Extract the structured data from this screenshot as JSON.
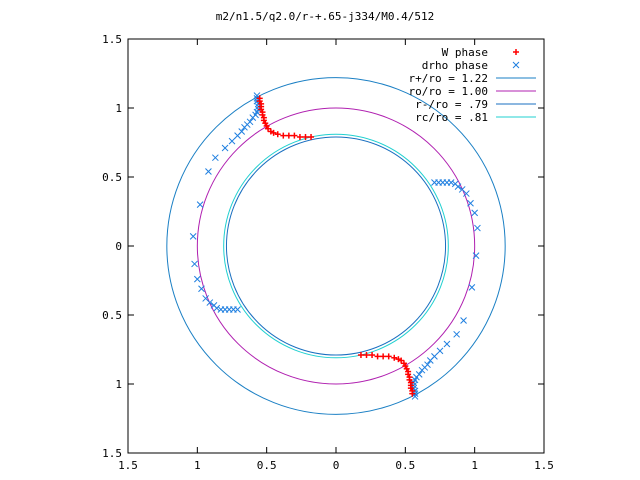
{
  "chart_data": {
    "type": "scatter",
    "title": "m2/n1.5/q2.0/r-+.65-j334/M0.4/512",
    "xlim": [
      -1.5,
      1.5
    ],
    "ylim": [
      -1.5,
      1.5
    ],
    "x_ticks": [
      {
        "v": -1.5,
        "label": "1.5"
      },
      {
        "v": -1,
        "label": "1"
      },
      {
        "v": -0.5,
        "label": "0.5"
      },
      {
        "v": 0,
        "label": "0"
      },
      {
        "v": 0.5,
        "label": "0.5"
      },
      {
        "v": 1,
        "label": "1"
      },
      {
        "v": 1.5,
        "label": "1.5"
      }
    ],
    "y_ticks": [
      {
        "v": 1.5,
        "label": "1.5"
      },
      {
        "v": 1,
        "label": "1"
      },
      {
        "v": 0.5,
        "label": "0.5"
      },
      {
        "v": 0,
        "label": "0"
      },
      {
        "v": -0.5,
        "label": "0.5"
      },
      {
        "v": -1,
        "label": "1"
      },
      {
        "v": -1.5,
        "label": "1.5"
      }
    ],
    "legend_position": "top-right",
    "series": [
      {
        "name": "W phase",
        "kind": "points",
        "marker": "+",
        "color": "#ff0000"
      },
      {
        "name": "drho phase",
        "kind": "points",
        "marker": "x",
        "color": "#1f7fe0"
      },
      {
        "name": "r+/ro = 1.22",
        "kind": "circle",
        "radius": 1.22,
        "color": "#1a7fc4"
      },
      {
        "name": "ro/ro = 1.00",
        "kind": "circle",
        "radius": 1.0,
        "color": "#b020b0"
      },
      {
        "name": "r-/ro = .79",
        "kind": "circle",
        "radius": 0.79,
        "color": "#1a6fc0"
      },
      {
        "name": "rc/ro = .81",
        "kind": "circle",
        "radius": 0.81,
        "color": "#20d0d0"
      }
    ],
    "w_phase_points": [
      [
        -0.55,
        1.07
      ],
      [
        -0.55,
        1.05
      ],
      [
        -0.54,
        1.03
      ],
      [
        -0.54,
        1.01
      ],
      [
        -0.54,
        0.99
      ],
      [
        -0.53,
        0.97
      ],
      [
        -0.53,
        0.95
      ],
      [
        -0.52,
        0.93
      ],
      [
        -0.52,
        0.91
      ],
      [
        -0.51,
        0.89
      ],
      [
        -0.5,
        0.87
      ],
      [
        -0.49,
        0.85
      ],
      [
        -0.47,
        0.83
      ],
      [
        -0.45,
        0.82
      ],
      [
        -0.42,
        0.81
      ],
      [
        -0.38,
        0.8
      ],
      [
        -0.34,
        0.8
      ],
      [
        -0.3,
        0.8
      ],
      [
        -0.26,
        0.79
      ],
      [
        -0.22,
        0.79
      ],
      [
        -0.18,
        0.79
      ],
      [
        0.55,
        -1.07
      ],
      [
        0.55,
        -1.05
      ],
      [
        0.54,
        -1.03
      ],
      [
        0.54,
        -1.01
      ],
      [
        0.54,
        -0.99
      ],
      [
        0.53,
        -0.97
      ],
      [
        0.53,
        -0.95
      ],
      [
        0.52,
        -0.93
      ],
      [
        0.52,
        -0.91
      ],
      [
        0.51,
        -0.89
      ],
      [
        0.5,
        -0.87
      ],
      [
        0.49,
        -0.85
      ],
      [
        0.47,
        -0.83
      ],
      [
        0.45,
        -0.82
      ],
      [
        0.42,
        -0.81
      ],
      [
        0.38,
        -0.8
      ],
      [
        0.34,
        -0.8
      ],
      [
        0.3,
        -0.8
      ],
      [
        0.26,
        -0.79
      ],
      [
        0.22,
        -0.79
      ],
      [
        0.18,
        -0.79
      ]
    ],
    "drho_phase_points": [
      [
        -0.57,
        1.09
      ],
      [
        -0.57,
        1.07
      ],
      [
        -0.57,
        1.05
      ],
      [
        -0.56,
        1.03
      ],
      [
        -0.56,
        1.01
      ],
      [
        -0.56,
        0.99
      ],
      [
        -0.57,
        0.97
      ],
      [
        -0.58,
        0.95
      ],
      [
        -0.6,
        0.93
      ],
      [
        -0.62,
        0.9
      ],
      [
        -0.64,
        0.88
      ],
      [
        -0.66,
        0.86
      ],
      [
        -0.68,
        0.83
      ],
      [
        -0.71,
        0.8
      ],
      [
        -0.75,
        0.76
      ],
      [
        -0.8,
        0.71
      ],
      [
        -0.87,
        0.64
      ],
      [
        -0.92,
        0.54
      ],
      [
        -0.98,
        0.3
      ],
      [
        -1.03,
        0.07
      ],
      [
        -1.02,
        -0.13
      ],
      [
        -1.0,
        -0.24
      ],
      [
        -0.97,
        -0.31
      ],
      [
        -0.94,
        -0.38
      ],
      [
        -0.91,
        -0.41
      ],
      [
        -0.88,
        -0.43
      ],
      [
        -0.86,
        -0.45
      ],
      [
        -0.83,
        -0.46
      ],
      [
        -0.8,
        -0.46
      ],
      [
        -0.77,
        -0.46
      ],
      [
        -0.74,
        -0.46
      ],
      [
        -0.71,
        -0.46
      ],
      [
        0.57,
        -1.09
      ],
      [
        0.57,
        -1.07
      ],
      [
        0.57,
        -1.05
      ],
      [
        0.56,
        -1.03
      ],
      [
        0.56,
        -1.01
      ],
      [
        0.56,
        -0.99
      ],
      [
        0.57,
        -0.97
      ],
      [
        0.58,
        -0.95
      ],
      [
        0.6,
        -0.93
      ],
      [
        0.62,
        -0.9
      ],
      [
        0.64,
        -0.88
      ],
      [
        0.66,
        -0.86
      ],
      [
        0.68,
        -0.83
      ],
      [
        0.71,
        -0.8
      ],
      [
        0.75,
        -0.76
      ],
      [
        0.8,
        -0.71
      ],
      [
        0.87,
        -0.64
      ],
      [
        0.92,
        -0.54
      ],
      [
        0.98,
        -0.3
      ],
      [
        1.01,
        -0.07
      ],
      [
        1.02,
        0.13
      ],
      [
        1.0,
        0.24
      ],
      [
        0.97,
        0.31
      ],
      [
        0.94,
        0.38
      ],
      [
        0.91,
        0.41
      ],
      [
        0.88,
        0.43
      ],
      [
        0.86,
        0.45
      ],
      [
        0.83,
        0.46
      ],
      [
        0.8,
        0.46
      ],
      [
        0.77,
        0.46
      ],
      [
        0.74,
        0.46
      ],
      [
        0.71,
        0.46
      ]
    ]
  }
}
